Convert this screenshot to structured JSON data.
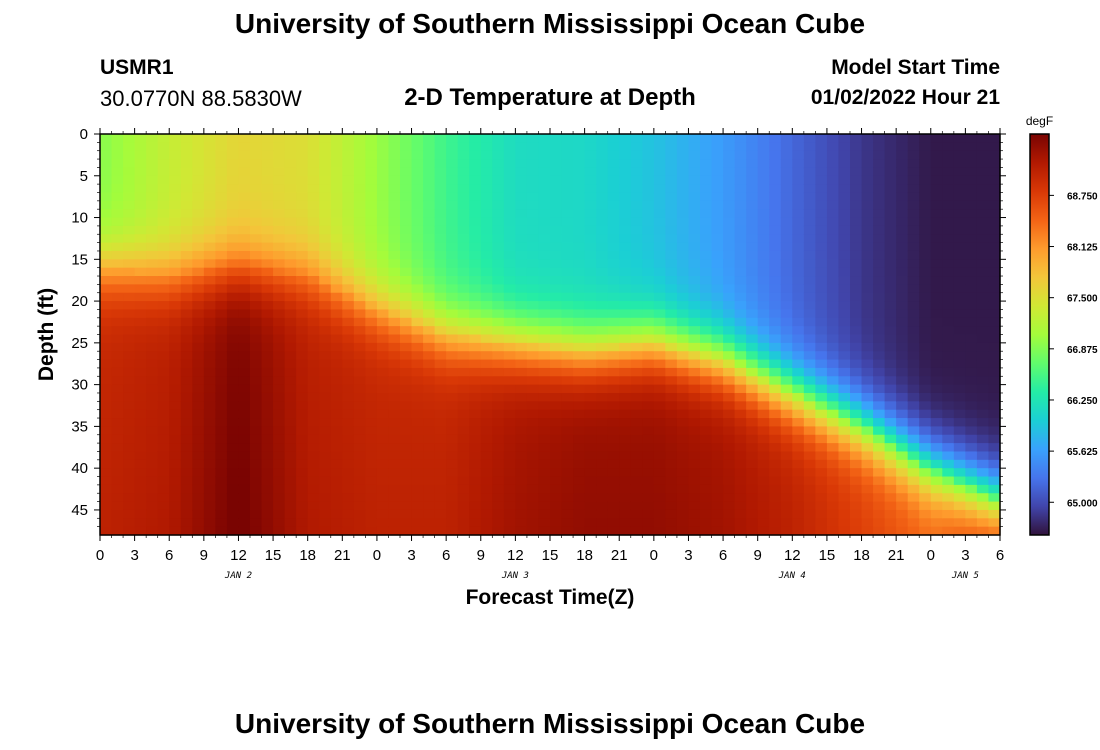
{
  "header": {
    "title": "University of Southern Mississippi Ocean Cube",
    "station": "USMR1",
    "coords": "30.0770N  88.5830W",
    "subtitle": "2-D Temperature at Depth",
    "model_start_label": "Model Start Time",
    "model_start_value": "01/02/2022 Hour 21"
  },
  "footer": {
    "title": "University of Southern Mississippi Ocean Cube"
  },
  "chart_data": {
    "type": "heatmap",
    "title": "2-D Temperature at Depth",
    "xlabel": "Forecast Time(Z)",
    "ylabel": "Depth (ft)",
    "x_ticks": [
      "0",
      "3",
      "6",
      "9",
      "12",
      "15",
      "18",
      "21",
      "0",
      "3",
      "6",
      "9",
      "12",
      "15",
      "18",
      "21",
      "0",
      "3",
      "6",
      "9",
      "12",
      "15",
      "18",
      "21",
      "0",
      "3",
      "6"
    ],
    "date_labels": [
      {
        "label": "JAN 2",
        "tick_index": 4
      },
      {
        "label": "JAN 3",
        "tick_index": 12
      },
      {
        "label": "JAN 4",
        "tick_index": 20
      },
      {
        "label": "JAN 5",
        "tick_index": 25
      }
    ],
    "y_ticks": [
      0,
      5,
      10,
      15,
      20,
      25,
      30,
      35,
      40,
      45
    ],
    "ylim": [
      0,
      48
    ],
    "x_hours": [
      0,
      78
    ],
    "colorbar": {
      "unit": "degF",
      "ticks": [
        65.0,
        65.625,
        66.25,
        66.875,
        67.5,
        68.125,
        68.75
      ],
      "tick_labels": [
        "65.000",
        "65.625",
        "66.250",
        "66.875",
        "67.500",
        "68.125",
        "68.750"
      ],
      "range": [
        64.6,
        69.5
      ],
      "colormap": [
        "#30123b",
        "#4145ab",
        "#4675ed",
        "#39a2fc",
        "#1bcfd4",
        "#24eca6",
        "#61fc6c",
        "#a4fc3b",
        "#d1e834",
        "#f3c63a",
        "#fe9b2d",
        "#f36315",
        "#d93806",
        "#b11901",
        "#7a0402"
      ]
    },
    "surface_layer": {
      "x_hours": [
        0,
        6,
        12,
        18,
        24,
        30,
        36,
        42,
        48,
        54,
        60,
        66,
        72,
        78
      ],
      "values": [
        66.9,
        67.3,
        67.6,
        67.5,
        67.0,
        66.5,
        66.15,
        66.1,
        65.9,
        65.6,
        65.2,
        64.85,
        64.65,
        64.65
      ]
    },
    "bottom_layer": {
      "x_hours": [
        0,
        6,
        12,
        18,
        24,
        30,
        36,
        42,
        48,
        54,
        60,
        66,
        72,
        78
      ],
      "values": [
        68.9,
        69.0,
        69.4,
        69.0,
        68.9,
        68.9,
        69.1,
        69.2,
        69.2,
        69.1,
        68.9,
        68.6,
        68.3,
        68.8
      ]
    },
    "thermocline_depth_ft": {
      "x_hours": [
        0,
        6,
        12,
        18,
        24,
        30,
        36,
        42,
        48,
        54,
        60,
        66,
        72,
        78
      ],
      "values": [
        16,
        17,
        16,
        17,
        21,
        24,
        25,
        26,
        25,
        27,
        31,
        35,
        40,
        44
      ]
    }
  }
}
